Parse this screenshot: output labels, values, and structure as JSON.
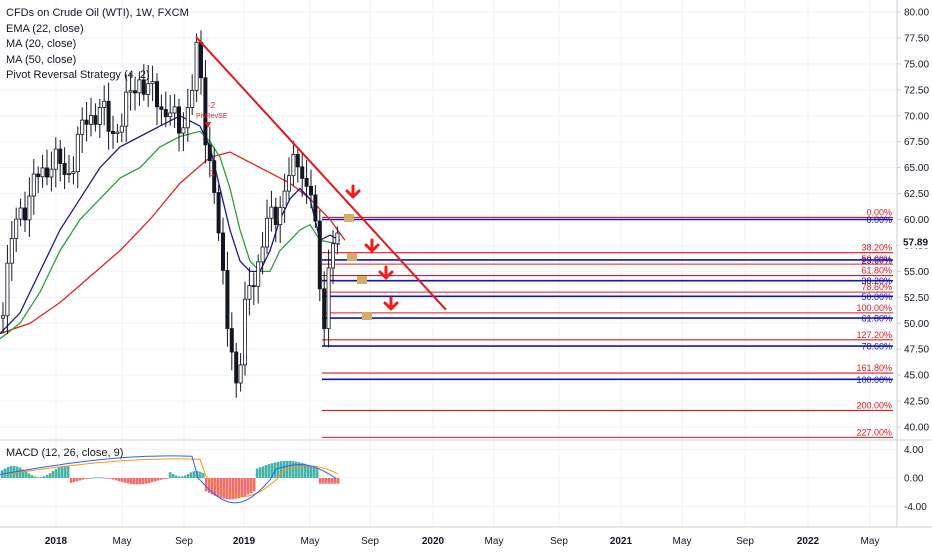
{
  "legend": {
    "title": "CFDs on Crude Oil (WTI), 1W, FXCM",
    "ema": "EMA (22, close)",
    "ma20": "MA (20, close)",
    "ma50": "MA (50, close)",
    "strategy": "Pivot Reversal Strategy (4, 2)"
  },
  "macd_legend": "MACD (12, 26, close, 9)",
  "signal_label": "PivRevSE",
  "signal_count": "-2",
  "signal_marker": "1",
  "price_label": "57.89",
  "colors": {
    "candle": "#131722",
    "ema": "#1a1a8c",
    "ma20": "#2e9e3c",
    "ma50": "#d9271e",
    "trendline": "#e0191e",
    "fib_red": "#e0191e",
    "fib_blue": "#1414b8",
    "arrow": "#ef1c1c",
    "marker": "#d4ad6a",
    "macd_pos": "#26a69a",
    "macd_neg": "#ef5350",
    "macd_line": "#2962ff",
    "signal_line": "#ff9800"
  },
  "chart_data": [
    {
      "type": "candlestick",
      "title": "CFDs on Crude Oil (WTI), 1W, FXCM",
      "x_ticks": [
        "2018",
        "May",
        "Sep",
        "2019",
        "May",
        "Sep",
        "2020",
        "May",
        "Sep",
        "2021",
        "May",
        "Sep",
        "2022",
        "May"
      ],
      "y_ticks": [
        "80.00",
        "77.50",
        "75.00",
        "72.50",
        "70.00",
        "67.50",
        "65.00",
        "62.50",
        "60.00",
        "57.50",
        "55.00",
        "52.50",
        "50.00",
        "47.50",
        "45.00",
        "42.50",
        "40.00"
      ],
      "ylim": [
        40,
        80
      ],
      "last_price": 57.89,
      "price_path_weekly": [
        [
          0,
          50.5
        ],
        [
          8,
          55.5
        ],
        [
          18,
          60.5
        ],
        [
          30,
          62.5
        ],
        [
          42,
          64.5
        ],
        [
          52,
          66
        ],
        [
          66,
          64
        ],
        [
          78,
          67.5
        ],
        [
          90,
          70
        ],
        [
          100,
          71
        ],
        [
          110,
          68
        ],
        [
          122,
          70
        ],
        [
          130,
          71.5
        ],
        [
          140,
          74
        ],
        [
          150,
          72
        ],
        [
          162,
          71
        ],
        [
          170,
          70.5
        ],
        [
          178,
          68
        ],
        [
          186,
          70.5
        ],
        [
          192,
          73
        ],
        [
          198,
          76.5
        ],
        [
          204,
          69
        ],
        [
          210,
          66
        ],
        [
          216,
          62
        ],
        [
          220,
          56
        ],
        [
          226,
          51
        ],
        [
          232,
          48
        ],
        [
          238,
          43
        ],
        [
          244,
          50
        ],
        [
          250,
          54
        ],
        [
          258,
          56
        ],
        [
          264,
          58
        ],
        [
          270,
          60
        ],
        [
          276,
          61
        ],
        [
          282,
          62
        ],
        [
          290,
          64
        ],
        [
          300,
          66.5
        ],
        [
          306,
          63
        ],
        [
          312,
          62
        ],
        [
          316,
          58
        ],
        [
          320,
          53
        ],
        [
          324,
          51
        ],
        [
          328,
          55
        ],
        [
          332,
          57
        ],
        [
          336,
          58
        ],
        [
          340,
          57.89
        ]
      ],
      "ema_22": [
        [
          0,
          49
        ],
        [
          20,
          51
        ],
        [
          40,
          55
        ],
        [
          60,
          59
        ],
        [
          80,
          62
        ],
        [
          100,
          65
        ],
        [
          120,
          67
        ],
        [
          140,
          68
        ],
        [
          160,
          69
        ],
        [
          180,
          70
        ],
        [
          200,
          69
        ],
        [
          210,
          67
        ],
        [
          220,
          63
        ],
        [
          230,
          59
        ],
        [
          240,
          56
        ],
        [
          250,
          55
        ],
        [
          260,
          55
        ],
        [
          270,
          57
        ],
        [
          280,
          60
        ],
        [
          290,
          62
        ],
        [
          300,
          63
        ],
        [
          310,
          62
        ],
        [
          320,
          58
        ],
        [
          330,
          58.5
        ],
        [
          340,
          58
        ]
      ],
      "ma_20": [
        [
          0,
          48.5
        ],
        [
          20,
          50
        ],
        [
          40,
          53
        ],
        [
          60,
          57
        ],
        [
          80,
          60
        ],
        [
          100,
          62
        ],
        [
          120,
          64
        ],
        [
          140,
          65
        ],
        [
          160,
          67
        ],
        [
          180,
          68
        ],
        [
          200,
          68.5
        ],
        [
          210,
          67.5
        ],
        [
          220,
          66
        ],
        [
          230,
          63
        ],
        [
          240,
          59
        ],
        [
          250,
          56
        ],
        [
          260,
          55
        ],
        [
          270,
          55
        ],
        [
          280,
          57
        ],
        [
          290,
          58
        ],
        [
          300,
          59
        ],
        [
          310,
          59.5
        ],
        [
          320,
          58
        ],
        [
          330,
          57.8
        ],
        [
          340,
          57.6
        ]
      ],
      "ma_50": [
        [
          0,
          49
        ],
        [
          30,
          50
        ],
        [
          60,
          52
        ],
        [
          90,
          54.5
        ],
        [
          120,
          57
        ],
        [
          150,
          60
        ],
        [
          180,
          63.5
        ],
        [
          210,
          66
        ],
        [
          230,
          66.5
        ],
        [
          250,
          65.5
        ],
        [
          270,
          64.5
        ],
        [
          290,
          63.5
        ],
        [
          310,
          62
        ],
        [
          330,
          60
        ],
        [
          345,
          58
        ]
      ],
      "trendline": {
        "from": [
          196,
          77.6
        ],
        "to": [
          446,
          51.3
        ]
      },
      "fib_levels_red": [
        {
          "label": "0.00%",
          "value": 60.2
        },
        {
          "label": "38.20%",
          "value": 56.8
        },
        {
          "label": "50.00%",
          "value": 55.7
        },
        {
          "label": "61.80%",
          "value": 54.6
        },
        {
          "label": "78.60%",
          "value": 53.0
        },
        {
          "label": "100.00%",
          "value": 51.0
        },
        {
          "label": "127.20%",
          "value": 48.4
        },
        {
          "label": "161.80%",
          "value": 45.2
        },
        {
          "label": "200.00%",
          "value": 41.6
        },
        {
          "label": "227.00%",
          "value": 39.0
        }
      ],
      "fib_levels_blue": [
        {
          "label": "0.00%",
          "value": 60.0
        },
        {
          "label": "23.60%",
          "value": 56.1
        },
        {
          "label": "38.20%",
          "value": 54.1
        },
        {
          "label": "50.00%",
          "value": 52.6
        },
        {
          "label": "61.80%",
          "value": 50.5
        },
        {
          "label": "78.60%",
          "value": 47.8
        },
        {
          "label": "100.00%",
          "value": 44.6
        }
      ],
      "grid": true
    },
    {
      "type": "bar",
      "title": "MACD (12, 26, close, 9)",
      "y_ticks": [
        "4.00",
        "0.00",
        "-4.00"
      ],
      "ylim": [
        -6,
        5
      ]
    }
  ]
}
